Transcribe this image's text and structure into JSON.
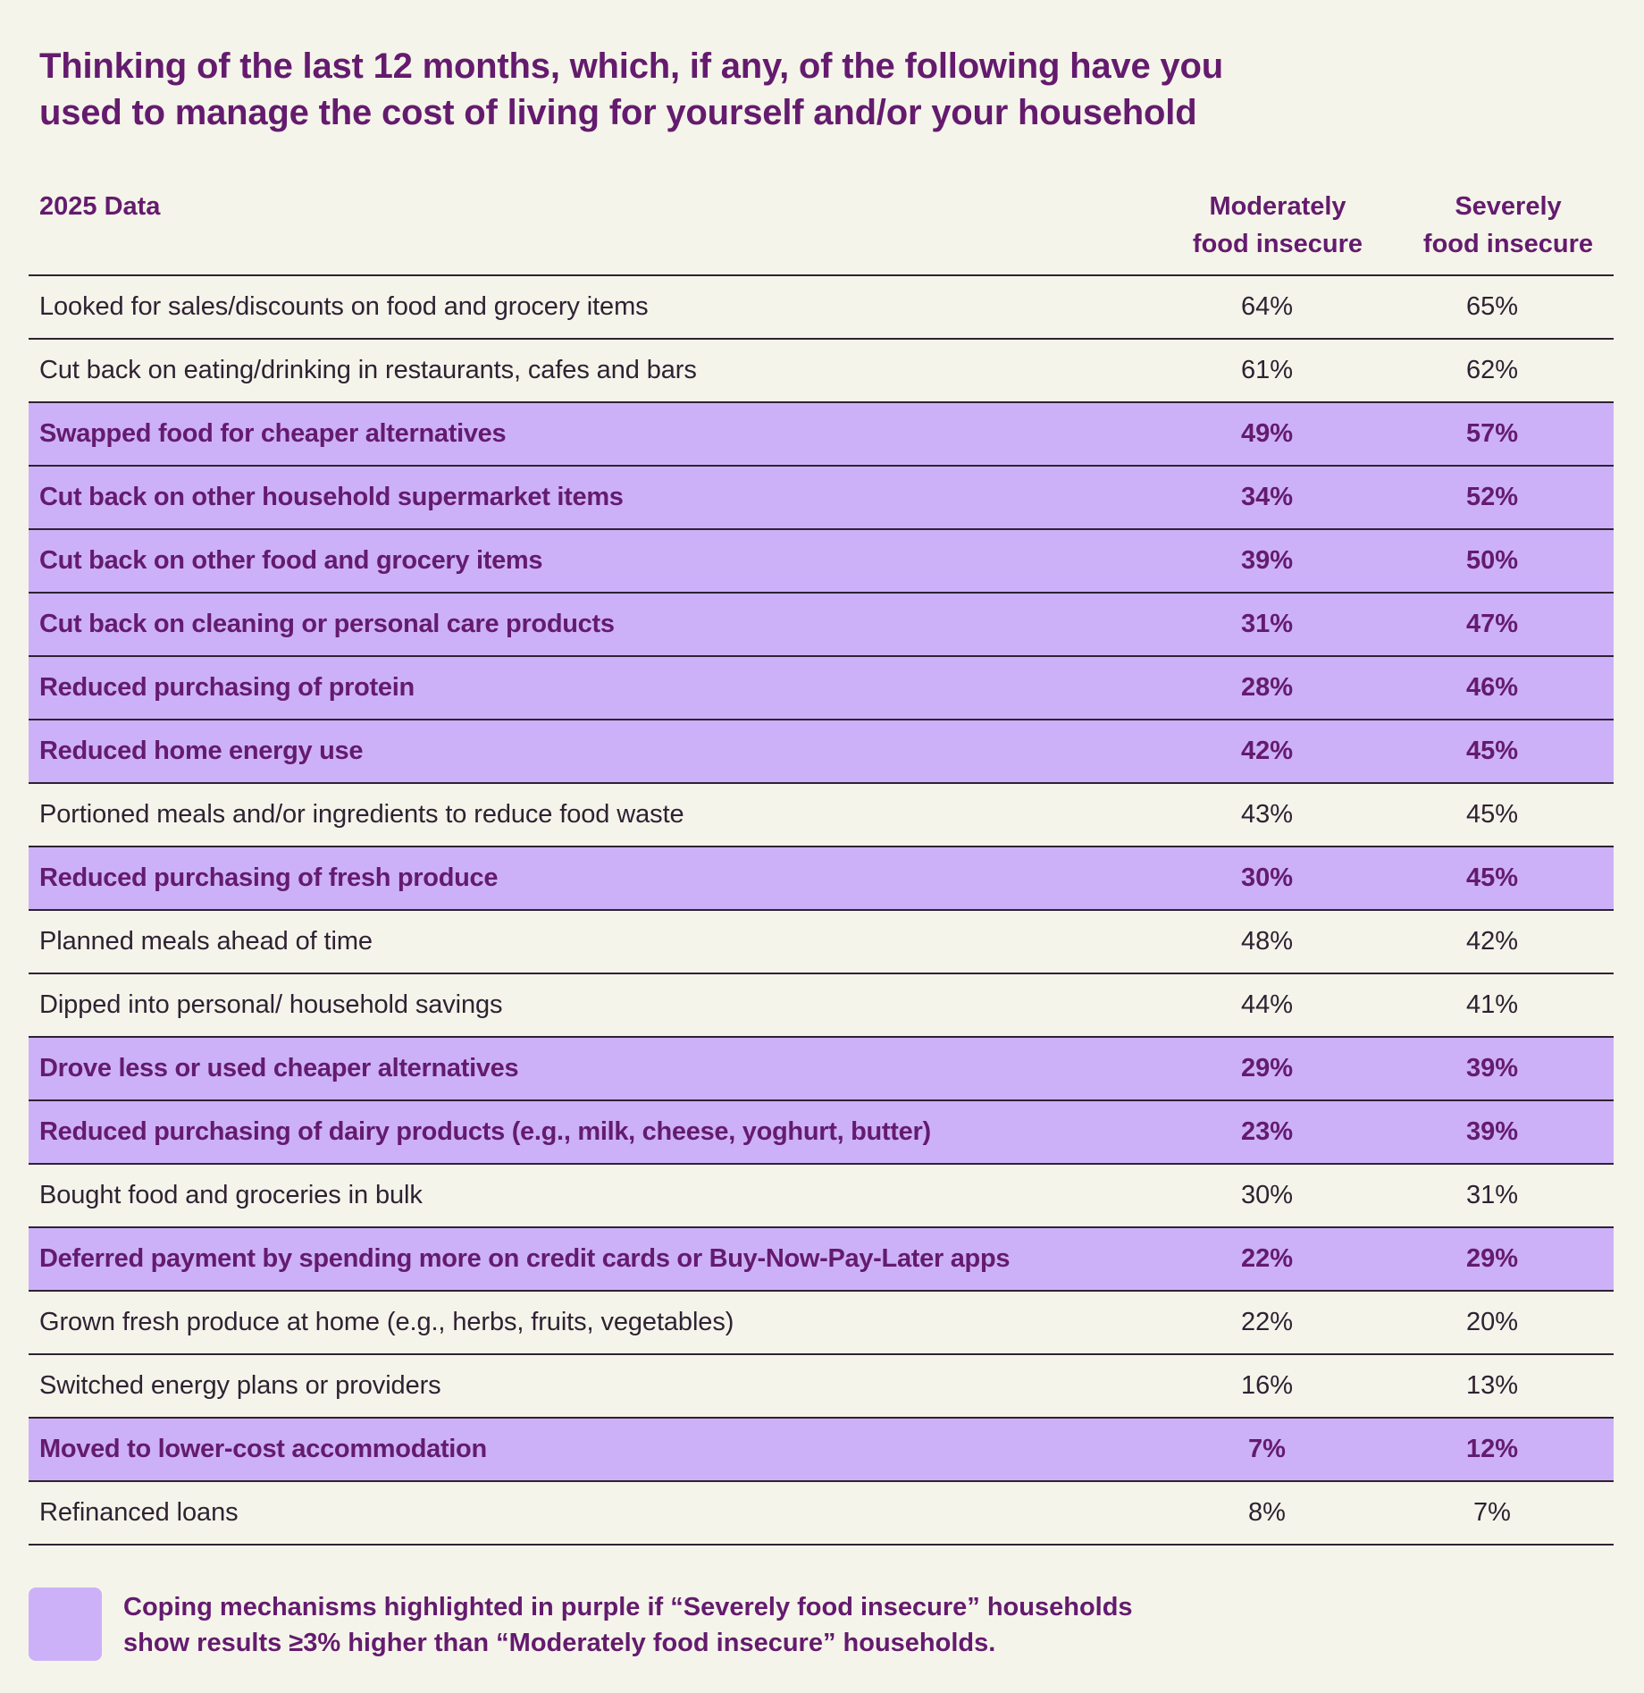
{
  "title": {
    "line1": "Thinking of the last 12 months, which, if any, of the following have you",
    "line2": "used to manage the cost of living for yourself and/or your household"
  },
  "header": {
    "year_label": "2025 Data",
    "col_moderate": {
      "line1": "Moderately",
      "line2": "food insecure"
    },
    "col_severe": {
      "line1": "Severely",
      "line2": "food insecure"
    }
  },
  "colors": {
    "background": "#F5F4EA",
    "highlight": "#CDB1F8",
    "accent_text": "#641B6E",
    "body_text": "#2E2233"
  },
  "rows": [
    {
      "label": "Looked for sales/discounts on food and grocery items",
      "moderate": "64%",
      "severe": "65%",
      "highlighted": false
    },
    {
      "label": "Cut back on eating/drinking in restaurants, cafes and bars",
      "moderate": "61%",
      "severe": "62%",
      "highlighted": false
    },
    {
      "label": "Swapped food for cheaper alternatives",
      "moderate": "49%",
      "severe": "57%",
      "highlighted": true
    },
    {
      "label": "Cut back on other household supermarket items",
      "moderate": "34%",
      "severe": "52%",
      "highlighted": true
    },
    {
      "label": "Cut back on other food and grocery items",
      "moderate": "39%",
      "severe": "50%",
      "highlighted": true
    },
    {
      "label": "Cut back on cleaning or personal care products",
      "moderate": "31%",
      "severe": "47%",
      "highlighted": true
    },
    {
      "label": "Reduced purchasing of protein",
      "moderate": "28%",
      "severe": "46%",
      "highlighted": true
    },
    {
      "label": "Reduced home energy use",
      "moderate": "42%",
      "severe": "45%",
      "highlighted": true
    },
    {
      "label": "Portioned meals and/or ingredients to reduce food waste",
      "moderate": "43%",
      "severe": "45%",
      "highlighted": false
    },
    {
      "label": "Reduced purchasing of fresh produce",
      "moderate": "30%",
      "severe": "45%",
      "highlighted": true
    },
    {
      "label": "Planned meals ahead of time",
      "moderate": "48%",
      "severe": "42%",
      "highlighted": false
    },
    {
      "label": "Dipped into personal/ household savings",
      "moderate": "44%",
      "severe": "41%",
      "highlighted": false
    },
    {
      "label": "Drove less or used cheaper alternatives",
      "moderate": "29%",
      "severe": "39%",
      "highlighted": true
    },
    {
      "label": "Reduced purchasing of dairy products (e.g., milk, cheese, yoghurt, butter)",
      "moderate": "23%",
      "severe": "39%",
      "highlighted": true
    },
    {
      "label": "Bought food and groceries in bulk",
      "moderate": "30%",
      "severe": "31%",
      "highlighted": false
    },
    {
      "label": "Deferred payment by spending more on credit cards or Buy-Now-Pay-Later apps",
      "moderate": "22%",
      "severe": "29%",
      "highlighted": true
    },
    {
      "label": "Grown fresh produce at home (e.g., herbs, fruits, vegetables)",
      "moderate": "22%",
      "severe": "20%",
      "highlighted": false
    },
    {
      "label": "Switched energy plans or providers",
      "moderate": "16%",
      "severe": "13%",
      "highlighted": false
    },
    {
      "label": "Moved to lower-cost accommodation",
      "moderate": "7%",
      "severe": "12%",
      "highlighted": true
    },
    {
      "label": "Refinanced loans",
      "moderate": "8%",
      "severe": "7%",
      "highlighted": false
    }
  ],
  "legend": {
    "line1": "Coping mechanisms highlighted in purple if “Severely food insecure” households",
    "line2": "show results ≥3% higher than “Moderately food insecure” households."
  }
}
